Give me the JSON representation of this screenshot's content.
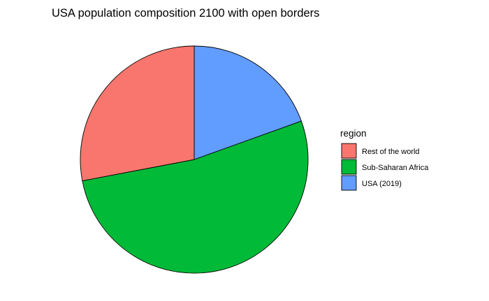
{
  "chart_data": {
    "type": "pie",
    "title": "USA population composition 2100 with open borders",
    "legend_title": "region",
    "legend_position": "right",
    "slices": [
      {
        "label": "USA (2019)",
        "value": 19.5,
        "color": "#619CFF"
      },
      {
        "label": "Sub-Saharan Africa",
        "value": 52.5,
        "color": "#00BA38"
      },
      {
        "label": "Rest of the world",
        "value": 28.0,
        "color": "#F8766D"
      }
    ],
    "legend_order": [
      "Rest of the world",
      "Sub-Saharan Africa",
      "USA (2019)"
    ],
    "start_angle": "12 o'clock",
    "direction": "clockwise"
  }
}
